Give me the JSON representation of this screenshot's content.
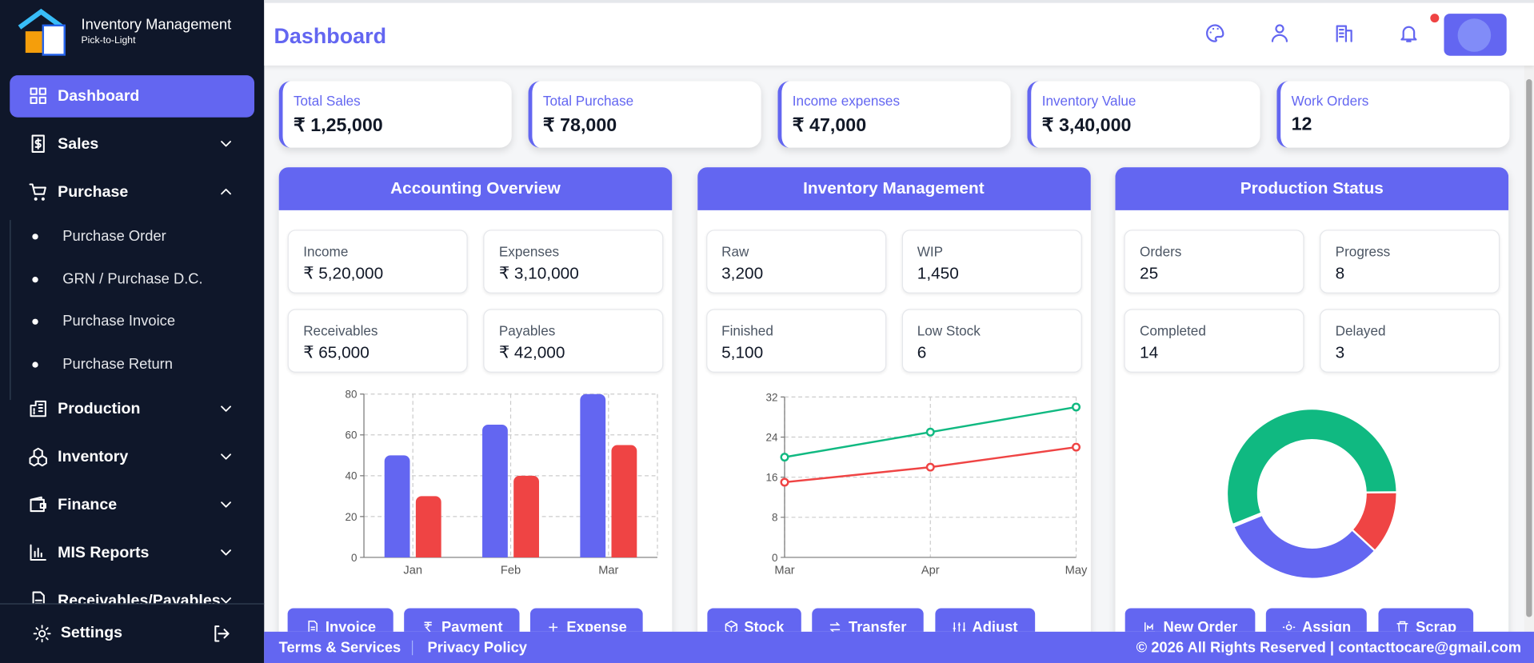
{
  "sidebar": {
    "brand": {
      "title": "Inventory Management",
      "subtitle": "Pick-to-Light"
    },
    "nav": [
      {
        "label": "Dashboard"
      },
      {
        "label": "Sales"
      },
      {
        "label": "Purchase",
        "children": [
          "Purchase Order",
          "GRN / Purchase D.C.",
          "Purchase Invoice",
          "Purchase Return"
        ]
      },
      {
        "label": "Production"
      },
      {
        "label": "Inventory"
      },
      {
        "label": "Finance"
      },
      {
        "label": "MIS Reports"
      },
      {
        "label": "Receivables/Payables"
      }
    ],
    "settings": "Settings"
  },
  "header": {
    "title": "Dashboard"
  },
  "stats": [
    {
      "label": "Total Sales",
      "value": "₹ 1,25,000"
    },
    {
      "label": "Total Purchase",
      "value": "₹ 78,000"
    },
    {
      "label": "Income expenses",
      "value": "₹ 47,000"
    },
    {
      "label": "Inventory Value",
      "value": "₹ 3,40,000"
    },
    {
      "label": "Work Orders",
      "value": "12"
    }
  ],
  "panels": [
    {
      "title": "Accounting Overview",
      "cards": [
        {
          "label": "Income",
          "value": "₹ 5,20,000"
        },
        {
          "label": "Expenses",
          "value": "₹ 3,10,000"
        },
        {
          "label": "Receivables",
          "value": "₹ 65,000"
        },
        {
          "label": "Payables",
          "value": "₹ 42,000"
        }
      ],
      "buttons": [
        "Invoice",
        "Payment",
        "Expense"
      ]
    },
    {
      "title": "Inventory Management",
      "cards": [
        {
          "label": "Raw",
          "value": "3,200"
        },
        {
          "label": "WIP",
          "value": "1,450"
        },
        {
          "label": "Finished",
          "value": "5,100"
        },
        {
          "label": "Low Stock",
          "value": "6"
        }
      ],
      "buttons": [
        "Stock",
        "Transfer",
        "Adjust"
      ]
    },
    {
      "title": "Production Status",
      "cards": [
        {
          "label": "Orders",
          "value": "25"
        },
        {
          "label": "Progress",
          "value": "8"
        },
        {
          "label": "Completed",
          "value": "14"
        },
        {
          "label": "Delayed",
          "value": "3"
        }
      ],
      "buttons": [
        "New Order",
        "Assign",
        "Scrap"
      ]
    }
  ],
  "chart_data": [
    {
      "type": "bar",
      "categories": [
        "Jan",
        "Feb",
        "Mar"
      ],
      "series": [
        {
          "color": "#6366f1",
          "values": [
            50,
            65,
            80
          ]
        },
        {
          "color": "#ef4444",
          "values": [
            30,
            40,
            55
          ]
        }
      ],
      "ylim": [
        0,
        80
      ],
      "yticks": [
        0,
        20,
        40,
        60,
        80
      ],
      "grid": true
    },
    {
      "type": "line",
      "categories": [
        "Mar",
        "Apr",
        "May"
      ],
      "series": [
        {
          "color": "#10b981",
          "values": [
            20,
            25,
            30
          ]
        },
        {
          "color": "#ef4444",
          "values": [
            15,
            18,
            22
          ]
        }
      ],
      "ylim": [
        0,
        32
      ],
      "yticks": [
        0,
        8,
        16,
        24,
        32
      ],
      "grid": true
    },
    {
      "type": "pie",
      "values": [
        14,
        3,
        8
      ],
      "colors": [
        "#10b981",
        "#ef4444",
        "#6366f1"
      ]
    }
  ],
  "footer": {
    "links": [
      "Terms & Services",
      "Privacy Policy"
    ],
    "copyright": "© 2026 All Rights Reserved | contacttocare@gmail.com"
  }
}
